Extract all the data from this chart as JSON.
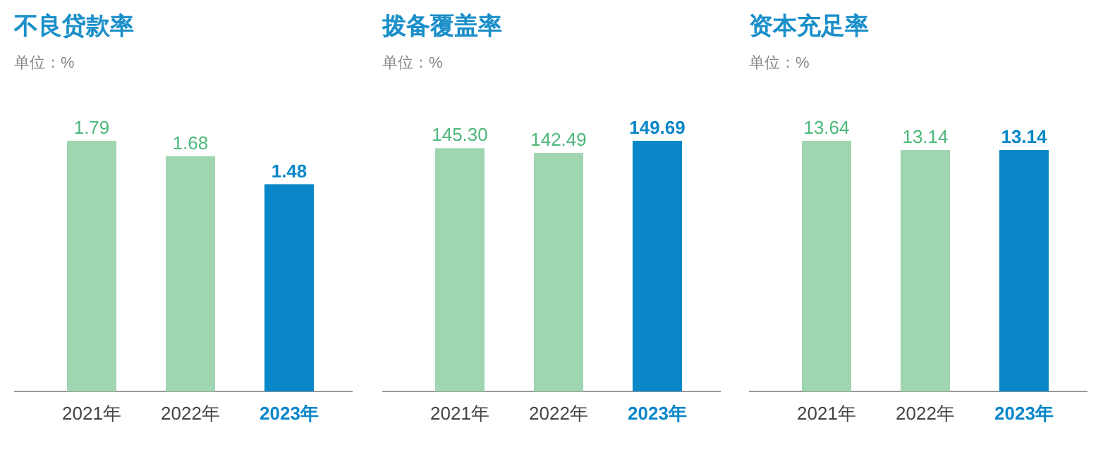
{
  "chart_data": [
    {
      "type": "bar",
      "title": "不良贷款率",
      "subtitle": "单位：%",
      "categories": [
        "2021年",
        "2022年",
        "2023年"
      ],
      "values": [
        1.79,
        1.68,
        1.48
      ],
      "colors": [
        "#9fd5b1",
        "#9fd5b1",
        "#0a87c9"
      ],
      "data_labels": true
    },
    {
      "type": "bar",
      "title": "拨备覆盖率",
      "subtitle": "单位：%",
      "categories": [
        "2021年",
        "2022年",
        "2023年"
      ],
      "values": [
        145.3,
        142.49,
        149.69
      ],
      "value_labels": [
        "145.30",
        "142.49",
        "149.69"
      ],
      "colors": [
        "#9fd5b1",
        "#9fd5b1",
        "#0a87c9"
      ]
    },
    {
      "type": "bar",
      "title": "资本充足率",
      "subtitle": "单位：%",
      "categories": [
        "2021年",
        "2022年",
        "2023年"
      ],
      "values": [
        13.64,
        13.14,
        13.14
      ],
      "colors": [
        "#9fd5b1",
        "#9fd5b1",
        "#0a87c9"
      ],
      "data_labels": true
    }
  ]
}
